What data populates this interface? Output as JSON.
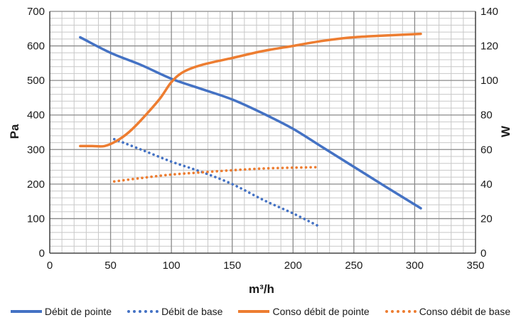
{
  "chart_data": {
    "type": "line",
    "title": "",
    "xlabel": "m³/h",
    "ylabel": "Pa",
    "y2label": "W",
    "xlim": [
      0,
      350
    ],
    "ylim": [
      0,
      700
    ],
    "y2lim": [
      0,
      140
    ],
    "x_ticks": [
      0,
      50,
      100,
      150,
      200,
      250,
      300,
      350
    ],
    "y_ticks": [
      0,
      100,
      200,
      300,
      400,
      500,
      600,
      700
    ],
    "y2_ticks": [
      0,
      20,
      40,
      60,
      80,
      100,
      120,
      140
    ],
    "grid": true,
    "legend_position": "bottom",
    "series": [
      {
        "name": "Débit de pointe",
        "axis": "left",
        "color": "#4472c4",
        "style": "solid",
        "x": [
          25,
          50,
          75,
          100,
          125,
          150,
          175,
          200,
          225,
          250,
          275,
          305
        ],
        "y": [
          625,
          580,
          545,
          505,
          475,
          445,
          405,
          360,
          305,
          250,
          195,
          130
        ]
      },
      {
        "name": "Débit de base",
        "axis": "left",
        "color": "#4472c4",
        "style": "dotted",
        "x": [
          53,
          75,
          100,
          125,
          150,
          175,
          200,
          220
        ],
        "y": [
          330,
          300,
          265,
          235,
          200,
          155,
          115,
          80
        ]
      },
      {
        "name": "Conso débit de pointe",
        "axis": "right",
        "color": "#ed7d31",
        "style": "solid",
        "x": [
          25,
          35,
          45,
          55,
          65,
          75,
          90,
          100,
          110,
          125,
          150,
          175,
          200,
          225,
          250,
          275,
          305
        ],
        "y": [
          62,
          62,
          62,
          65,
          70,
          77,
          89,
          99,
          105,
          109,
          113,
          117,
          120,
          123,
          125,
          126,
          127
        ]
      },
      {
        "name": "Conso débit de base",
        "axis": "right",
        "color": "#ed7d31",
        "style": "dotted",
        "x": [
          53,
          75,
          100,
          125,
          150,
          175,
          200,
          220
        ],
        "y": [
          41.5,
          43.5,
          45.5,
          46.8,
          48,
          49,
          49.5,
          49.8
        ]
      }
    ]
  }
}
